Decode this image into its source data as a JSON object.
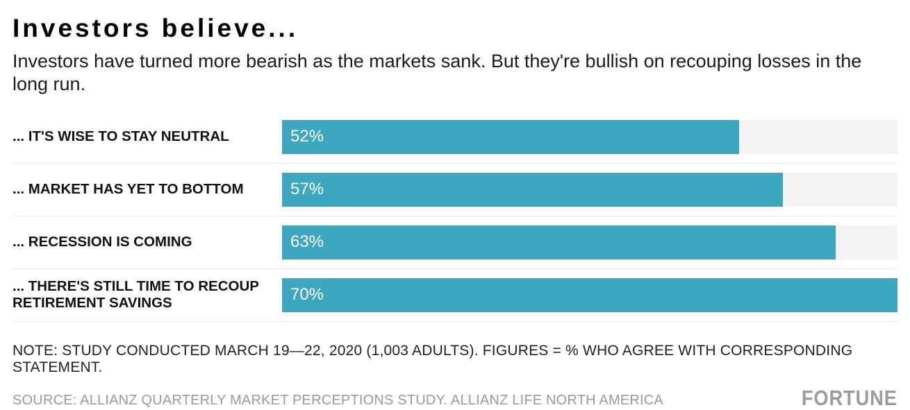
{
  "header": {
    "title": "Investors believe...",
    "subtitle": "Investors have turned more bearish as the markets sank. But they're bullish on recouping losses in the long run."
  },
  "chart_data": {
    "type": "bar",
    "orientation": "horizontal",
    "title": "Investors believe...",
    "subtitle": "Investors have turned more bearish as the markets sank. But they're bullish on recouping losses in the long run.",
    "categories": [
      "... IT'S WISE TO STAY NEUTRAL",
      "... MARKET HAS YET TO BOTTOM",
      "... RECESSION IS COMING",
      "... THERE'S STILL TIME TO RECOUP RETIREMENT SAVINGS"
    ],
    "values": [
      52,
      57,
      63,
      70
    ],
    "value_labels": [
      "52%",
      "57%",
      "63%",
      "70%"
    ],
    "value_suffix": "%",
    "xlim": [
      0,
      70
    ],
    "grid": false,
    "legend": "none",
    "bar_color": "#3DA7BF",
    "track_color": "#f3f3f3",
    "value_label_color": "#ffffff"
  },
  "footer": {
    "note": "NOTE: STUDY CONDUCTED MARCH 19—22, 2020 (1,003 ADULTS). FIGURES = % WHO AGREE WITH CORRESPONDING STATEMENT.",
    "source": "SOURCE: ALLIANZ QUARTERLY MARKET PERCEPTIONS STUDY. ALLIANZ LIFE NORTH AMERICA",
    "brand": "FORTUNE"
  }
}
